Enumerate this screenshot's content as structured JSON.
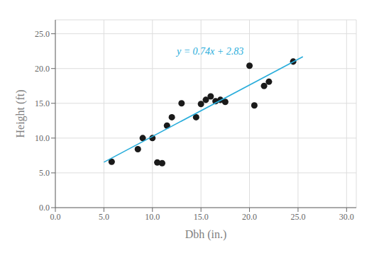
{
  "chart_data": {
    "type": "scatter",
    "xlabel": "Dbh (in.)",
    "ylabel": "Height (ft)",
    "series": [
      {
        "type": "scatter",
        "color": "#1a1a1a",
        "x": [
          5.8,
          8.5,
          9.0,
          10.0,
          10.5,
          11.0,
          11.5,
          12.0,
          13.0,
          14.5,
          15.0,
          15.5,
          16.0,
          16.5,
          17.0,
          17.5,
          20.0,
          20.5,
          21.5,
          22.0,
          24.5
        ],
        "values": [
          6.6,
          8.4,
          10.0,
          10.0,
          6.5,
          6.4,
          11.8,
          13.0,
          15.0,
          13.0,
          14.9,
          15.5,
          16.0,
          15.3,
          15.5,
          15.2,
          20.4,
          14.7,
          17.5,
          18.1,
          21.0
        ]
      },
      {
        "type": "line",
        "color": "#29ADDB",
        "x": [
          5.0,
          25.5
        ],
        "values": [
          6.53,
          21.7
        ]
      }
    ],
    "annotations": [
      {
        "text": "y = 0.74x + 2.83",
        "x": 12.5,
        "y": 22.5,
        "color": "#29ADDB"
      }
    ],
    "xlim": [
      0.0,
      31.0
    ],
    "ylim": [
      0.0,
      27.0
    ],
    "xticks": [
      {
        "value": 0,
        "label": "0.0"
      },
      {
        "value": 5,
        "label": "5.0"
      },
      {
        "value": 10,
        "label": "10.0"
      },
      {
        "value": 15,
        "label": "15.0"
      },
      {
        "value": 20,
        "label": "20.0"
      },
      {
        "value": 25,
        "label": "25.0"
      },
      {
        "value": 30,
        "label": "30.0"
      }
    ],
    "yticks": [
      {
        "value": 0,
        "label": "0.0"
      },
      {
        "value": 5,
        "label": "5.0"
      },
      {
        "value": 10,
        "label": "10.0"
      },
      {
        "value": 15,
        "label": "15.0"
      },
      {
        "value": 20,
        "label": "20.0"
      },
      {
        "value": 25,
        "label": "25.0"
      }
    ],
    "grid": true
  }
}
